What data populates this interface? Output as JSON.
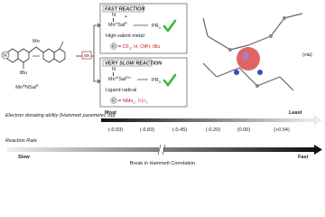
{
  "start_label": [
    {
      "t": "Mn"
    },
    {
      "t": "III",
      "s": "sup"
    },
    {
      "t": "NSal"
    },
    {
      "t": "R",
      "s": "sup"
    }
  ],
  "ox": "ox",
  "ring_label": "R",
  "tbu": "tBu",
  "fast": {
    "title": "FAST REACTION",
    "nitrogen": "N",
    "charge": "+",
    "species": [
      {
        "t": "Mn"
      },
      {
        "t": "V",
        "s": "sup"
      },
      {
        "t": "Sal"
      },
      {
        "t": "R",
        "s": "sup"
      }
    ],
    "reagent": [
      {
        "t": "PR"
      },
      {
        "t": "3",
        "s": "sub"
      }
    ],
    "descriptor": "High-valent metal",
    "r": "R",
    "substituents": [
      {
        "t": "= "
      },
      {
        "t": "CF",
        "s": "red"
      },
      {
        "t": "3",
        "s": "redsub"
      },
      {
        "t": ", H, OiPr, tBu",
        "s": "red"
      }
    ]
  },
  "slow": {
    "title": "VERY SLOW REACTION",
    "nitrogen": "N",
    "species": [
      {
        "t": "Mn"
      },
      {
        "t": "IV",
        "s": "sup"
      },
      {
        "t": "Sal"
      },
      {
        "t": "R•+",
        "s": "sup"
      }
    ],
    "reagent": [
      {
        "t": "PR"
      },
      {
        "t": "3",
        "s": "sub"
      }
    ],
    "descriptor": "Ligand radical",
    "r": "R",
    "substituents": [
      {
        "t": "= "
      },
      {
        "t": "NMe",
        "s": "red"
      },
      {
        "t": "2",
        "s": "redsub"
      },
      {
        "t": ", ",
        "s": "red"
      },
      {
        "t": "NEt",
        "s": "pink"
      },
      {
        "t": "2",
        "s": "pinksub"
      }
    ]
  },
  "via": "(via)",
  "hammett": {
    "label": "Electron donating ability (Hammett parameter, σp)",
    "most": "Most",
    "least": "Least",
    "values": [
      "(-0.93)",
      "(-0.83)",
      "(-0.45)",
      "(-0.20)",
      "(0.00)",
      "(+0.54)"
    ]
  },
  "rate": {
    "label": "Reaction Rate",
    "slow": "Slow",
    "fast": "Fast",
    "break": "Break in Hammett Correlation"
  }
}
